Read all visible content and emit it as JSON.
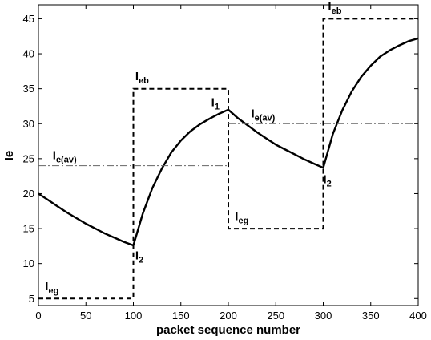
{
  "chart_data": {
    "type": "line",
    "title": "",
    "xlabel": "packet sequence number",
    "ylabel": "Ie",
    "xlim": [
      0,
      400
    ],
    "ylim": [
      4,
      47
    ],
    "grid": false,
    "x_ticks": [
      0,
      50,
      100,
      150,
      200,
      250,
      300,
      350,
      400
    ],
    "y_ticks": [
      5,
      10,
      15,
      20,
      25,
      30,
      35,
      40,
      45
    ],
    "series": [
      {
        "style": "solid",
        "x": [
          0,
          10,
          20,
          30,
          40,
          50,
          60,
          70,
          80,
          90,
          100,
          110,
          120,
          130,
          140,
          150,
          160,
          170,
          180,
          190,
          200,
          210,
          220,
          230,
          240,
          250,
          260,
          270,
          280,
          290,
          300,
          310,
          320,
          330,
          340,
          350,
          360,
          370,
          380,
          390,
          400
        ],
        "y": [
          20,
          19.1,
          18.2,
          17.3,
          16.5,
          15.7,
          15.0,
          14.3,
          13.7,
          13.1,
          12.6,
          17.2,
          20.8,
          23.6,
          25.9,
          27.6,
          28.9,
          29.9,
          30.7,
          31.4,
          32.0,
          30.8,
          29.8,
          28.8,
          27.9,
          27.0,
          26.3,
          25.6,
          24.9,
          24.3,
          23.7,
          28.5,
          31.9,
          34.6,
          36.7,
          38.3,
          39.6,
          40.5,
          41.2,
          41.8,
          42.2
        ]
      },
      {
        "style": "dashed",
        "x": [
          0,
          100,
          100,
          200,
          200,
          300,
          300,
          400
        ],
        "y": [
          5,
          5,
          35,
          35,
          15,
          15,
          45,
          45
        ]
      },
      {
        "style": "dash-dot",
        "segments": [
          {
            "x": [
              0,
              200
            ],
            "y": [
              24,
              24
            ]
          },
          {
            "x": [
              200,
              400
            ],
            "y": [
              30,
              30
            ]
          }
        ]
      }
    ],
    "annotations": [
      {
        "main": "I",
        "sub": "eb",
        "x": 102,
        "y": 36.2
      },
      {
        "main": "I",
        "sub": "e(av)",
        "x": 15,
        "y": 24.9
      },
      {
        "main": "I",
        "sub": "1",
        "x": 182,
        "y": 32.5
      },
      {
        "main": "I",
        "sub": "e(av)",
        "x": 224,
        "y": 30.9
      },
      {
        "main": "I",
        "sub": "eb",
        "x": 305,
        "y": 46.2
      },
      {
        "main": "I",
        "sub": "2",
        "x": 102,
        "y": 10.6
      },
      {
        "main": "I",
        "sub": "2",
        "x": 300,
        "y": 21.5
      },
      {
        "main": "I",
        "sub": "eg",
        "x": 207,
        "y": 16.2
      },
      {
        "main": "I",
        "sub": "eg",
        "x": 7,
        "y": 6.2
      }
    ]
  }
}
